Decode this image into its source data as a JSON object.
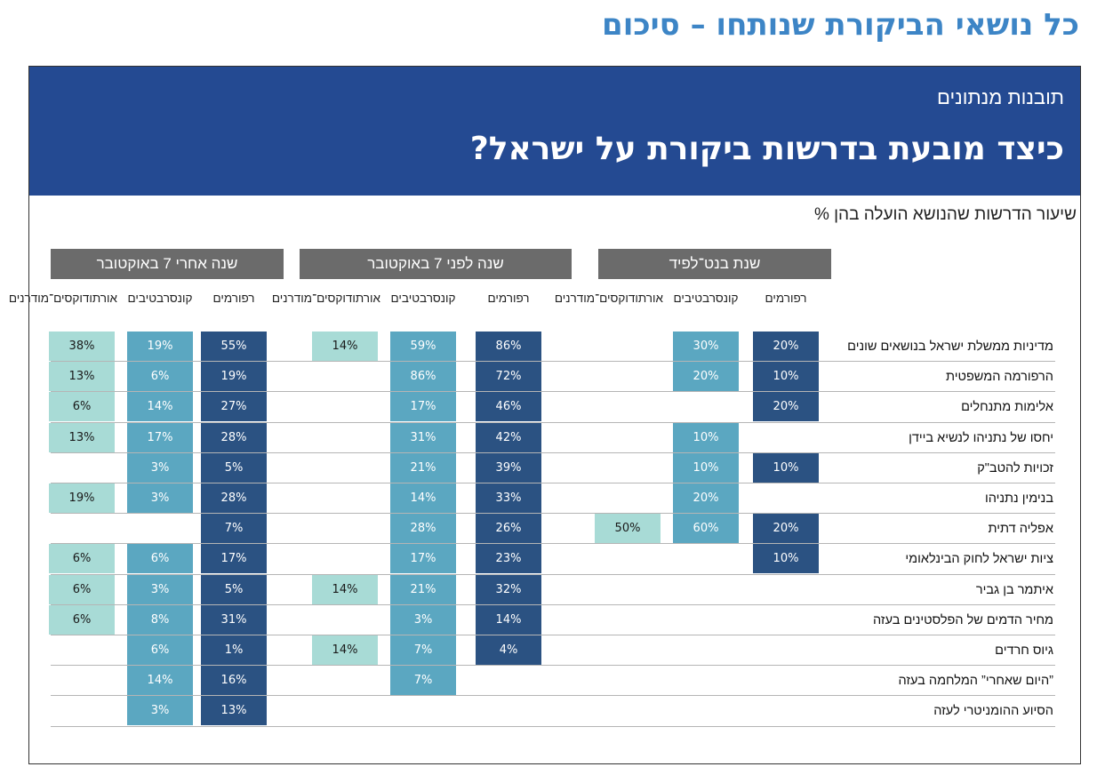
{
  "page_title": "כל נושאי הביקורת שנותחו – סיכום",
  "banner": {
    "subtitle": "תובנות מנתונים",
    "title": "כיצד מובעת בדרשות ביקורת על ישראל?"
  },
  "chart_subtitle": "שיעור הדרשות שהנושא הועלה בהן %",
  "colors": {
    "reform": "#2b5282",
    "conservative": "#5ba7c1",
    "orthodox": "#a8dbd6",
    "header": "#6b6b6b",
    "banner": "#244a92",
    "title": "#3d85c6"
  },
  "chart_data": {
    "type": "table",
    "unit": "%",
    "groups": [
      {
        "name": "שנת בנט־לפיד",
        "columns": [
          "רפורמים",
          "קונסרבטיבים",
          "אורתודוקסים־מודרנים"
        ]
      },
      {
        "name": "שנה לפני 7 באוקטובר",
        "columns": [
          "רפורמים",
          "קונסרבטיבים",
          "אורתודוקסים־מודרנים"
        ]
      },
      {
        "name": "שנה אחרי 7 באוקטובר",
        "columns": [
          "רפורמים",
          "קונסרבטיבים",
          "אורתודוקסים־מודרנים"
        ]
      }
    ],
    "rows": [
      {
        "label": "מדיניות ממשלת ישראל בנושאים שונים",
        "values": [
          [
            20,
            30,
            null
          ],
          [
            86,
            59,
            14
          ],
          [
            55,
            19,
            38
          ]
        ]
      },
      {
        "label": "הרפורמה המשפטית",
        "values": [
          [
            10,
            20,
            null
          ],
          [
            72,
            86,
            null
          ],
          [
            19,
            6,
            13
          ]
        ]
      },
      {
        "label": "אלימות מתנחלים",
        "values": [
          [
            20,
            null,
            null
          ],
          [
            46,
            17,
            null
          ],
          [
            27,
            14,
            6
          ]
        ]
      },
      {
        "label": "יחסו של נתניהו לנשיא ביידן",
        "values": [
          [
            null,
            10,
            null
          ],
          [
            42,
            31,
            null
          ],
          [
            28,
            17,
            13
          ]
        ]
      },
      {
        "label": "זכויות להטב\"ק",
        "values": [
          [
            10,
            10,
            null
          ],
          [
            39,
            21,
            null
          ],
          [
            5,
            3,
            null
          ]
        ]
      },
      {
        "label": "בנימין נתניהו",
        "values": [
          [
            null,
            20,
            null
          ],
          [
            33,
            14,
            null
          ],
          [
            28,
            3,
            19
          ]
        ]
      },
      {
        "label": "אפליה דתית",
        "values": [
          [
            20,
            60,
            50
          ],
          [
            26,
            28,
            null
          ],
          [
            7,
            null,
            null
          ]
        ]
      },
      {
        "label": "ציות ישראל לחוק הבינלאומי",
        "values": [
          [
            10,
            null,
            null
          ],
          [
            23,
            17,
            null
          ],
          [
            17,
            6,
            6
          ]
        ]
      },
      {
        "label": "איתמר בן גביר",
        "values": [
          [
            null,
            null,
            null
          ],
          [
            32,
            21,
            14
          ],
          [
            5,
            3,
            6
          ]
        ]
      },
      {
        "label": "מחיר הדמים של הפלסטינים בעזה",
        "values": [
          [
            null,
            null,
            null
          ],
          [
            14,
            3,
            null
          ],
          [
            31,
            8,
            6
          ]
        ]
      },
      {
        "label": "גיוס חרדים",
        "values": [
          [
            null,
            null,
            null
          ],
          [
            4,
            7,
            14
          ],
          [
            1,
            6,
            null
          ]
        ]
      },
      {
        "label": "”היום שאחרי” המלחמה בעזה",
        "values": [
          [
            null,
            null,
            null
          ],
          [
            null,
            7,
            null
          ],
          [
            16,
            14,
            null
          ]
        ]
      },
      {
        "label": "הסיוע ההומניטרי לעזה",
        "values": [
          [
            null,
            null,
            null
          ],
          [
            null,
            null,
            null
          ],
          [
            13,
            3,
            null
          ]
        ]
      }
    ]
  }
}
